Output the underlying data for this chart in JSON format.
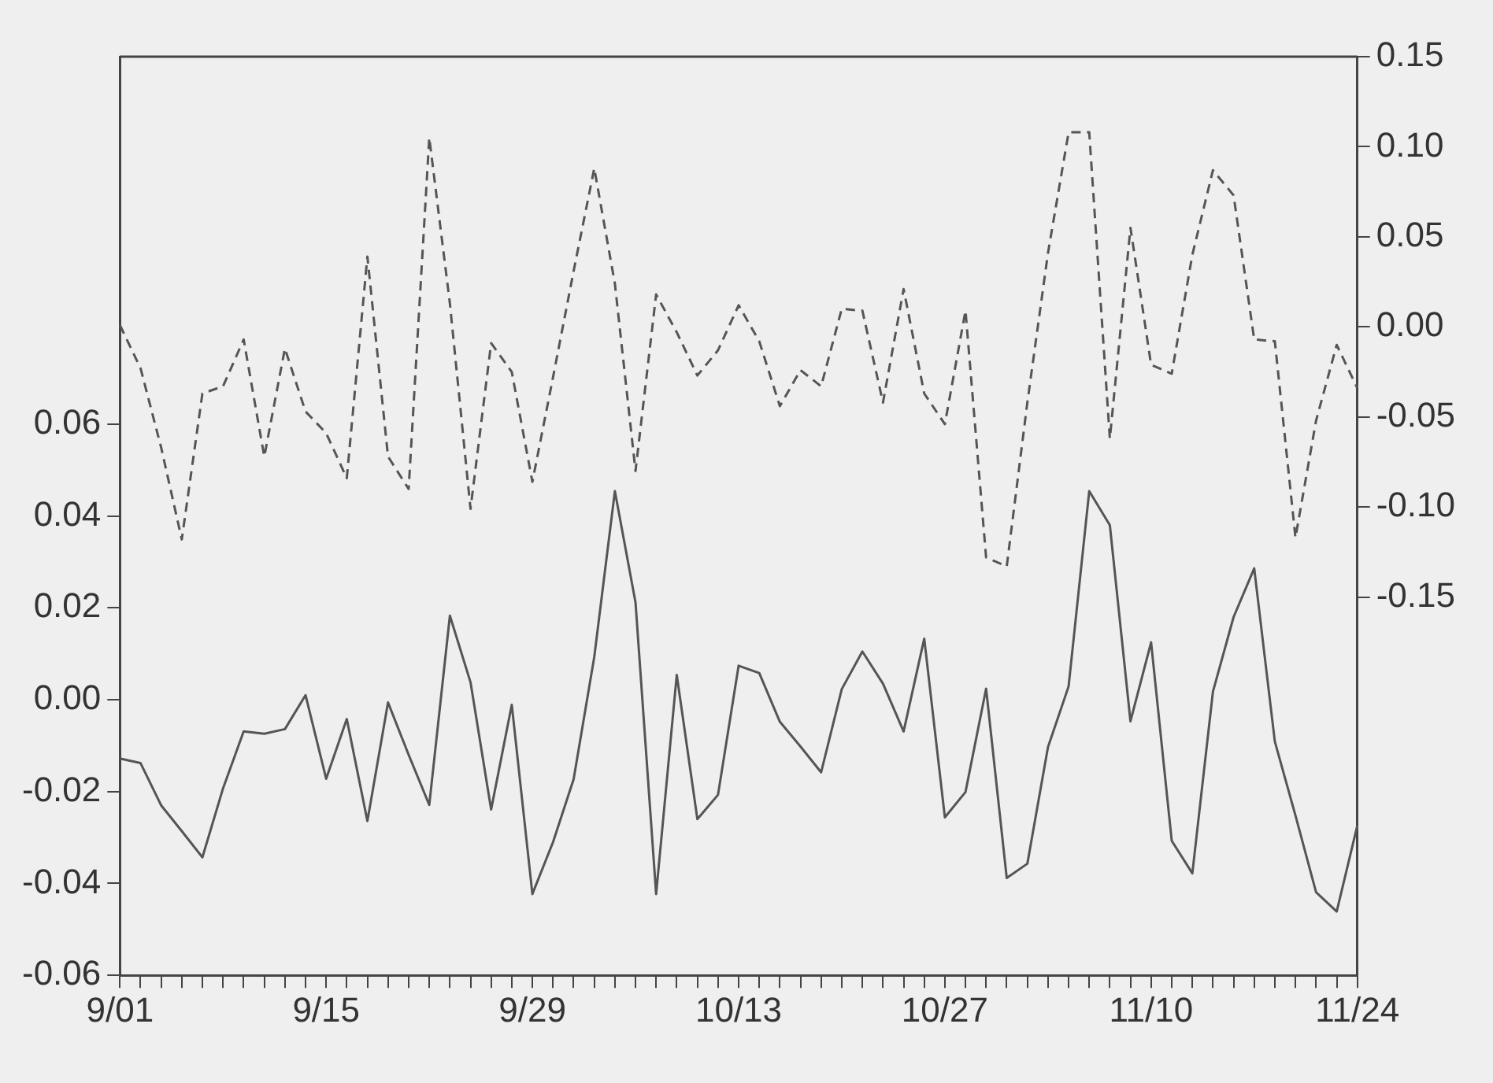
{
  "chart_data": {
    "type": "line",
    "categories": [
      "9/01",
      null,
      null,
      null,
      null,
      null,
      null,
      null,
      null,
      null,
      "9/15",
      null,
      null,
      null,
      null,
      null,
      null,
      null,
      null,
      null,
      "9/29",
      null,
      null,
      null,
      null,
      null,
      null,
      null,
      null,
      null,
      "10/13",
      null,
      null,
      null,
      null,
      null,
      null,
      null,
      null,
      null,
      "10/27",
      null,
      null,
      null,
      null,
      null,
      null,
      null,
      null,
      null,
      "11/10",
      null,
      null,
      null,
      null,
      null,
      null,
      null,
      null,
      null,
      "11/24"
    ],
    "series": [
      {
        "color": "#555555",
        "line_style": "solid",
        "values": [
          -0.0128,
          -0.0138,
          -0.023,
          -0.0286,
          -0.0343,
          -0.0193,
          -0.0069,
          -0.0074,
          -0.0064,
          0.001,
          -0.0172,
          -0.0042,
          -0.0264,
          -0.0006,
          -0.012,
          -0.0229,
          0.0183,
          0.0038,
          -0.0239,
          -0.0011,
          -0.0423,
          -0.031,
          -0.0173,
          0.0093,
          0.0454,
          0.0212,
          -0.0423,
          0.0054,
          -0.026,
          -0.0207,
          0.0074,
          0.0058,
          -0.0048,
          -0.0102,
          -0.0158,
          0.0023,
          0.0105,
          0.0035,
          -0.0069,
          0.0133,
          -0.0256,
          -0.0201,
          0.0024,
          -0.0388,
          -0.0357,
          -0.0103,
          0.0029,
          0.0454,
          0.038,
          -0.0047,
          0.0125,
          -0.0307,
          -0.0378,
          0.0018,
          0.018,
          0.0286,
          -0.0091,
          -0.0252,
          -0.0419,
          -0.0461,
          -0.0274
        ]
      },
      {
        "color": "#555555",
        "line_style": "dashed",
        "axis": "y2",
        "values": [
          0.001,
          -0.023,
          -0.067,
          -0.118,
          -0.037,
          -0.033,
          -0.007,
          -0.072,
          -0.012,
          -0.047,
          -0.059,
          -0.084,
          0.039,
          -0.072,
          -0.09,
          0.105,
          0.013,
          -0.101,
          -0.009,
          -0.025,
          -0.086,
          -0.028,
          0.031,
          0.088,
          0.024,
          -0.08,
          0.018,
          -0.003,
          -0.027,
          -0.013,
          0.012,
          -0.008,
          -0.044,
          -0.024,
          -0.033,
          0.01,
          0.009,
          -0.042,
          0.021,
          -0.037,
          -0.054,
          0.009,
          -0.128,
          -0.133,
          -0.042,
          0.041,
          0.108,
          0.108,
          -0.062,
          0.055,
          -0.021,
          -0.026,
          0.04,
          0.087,
          0.073,
          -0.007,
          -0.008,
          -0.117,
          -0.052,
          -0.01,
          -0.034
        ]
      }
    ],
    "ylim": [
      -0.06,
      0.14
    ],
    "yticks": [
      -0.06,
      -0.04,
      -0.02,
      {
        "value": 0,
        "label": "0.00"
      },
      0.02,
      0.04,
      0.06
    ],
    "y2lim": [
      -0.36,
      0.15
    ],
    "y2ticks": [
      {
        "value": -0.15,
        "label": "-0.15"
      },
      {
        "value": -0.1,
        "label": "-0.10"
      },
      -0.05,
      {
        "value": 0,
        "label": "0.00"
      },
      0.05,
      {
        "value": 0.1,
        "label": "0.10"
      },
      0.15
    ],
    "marker": "none"
  }
}
